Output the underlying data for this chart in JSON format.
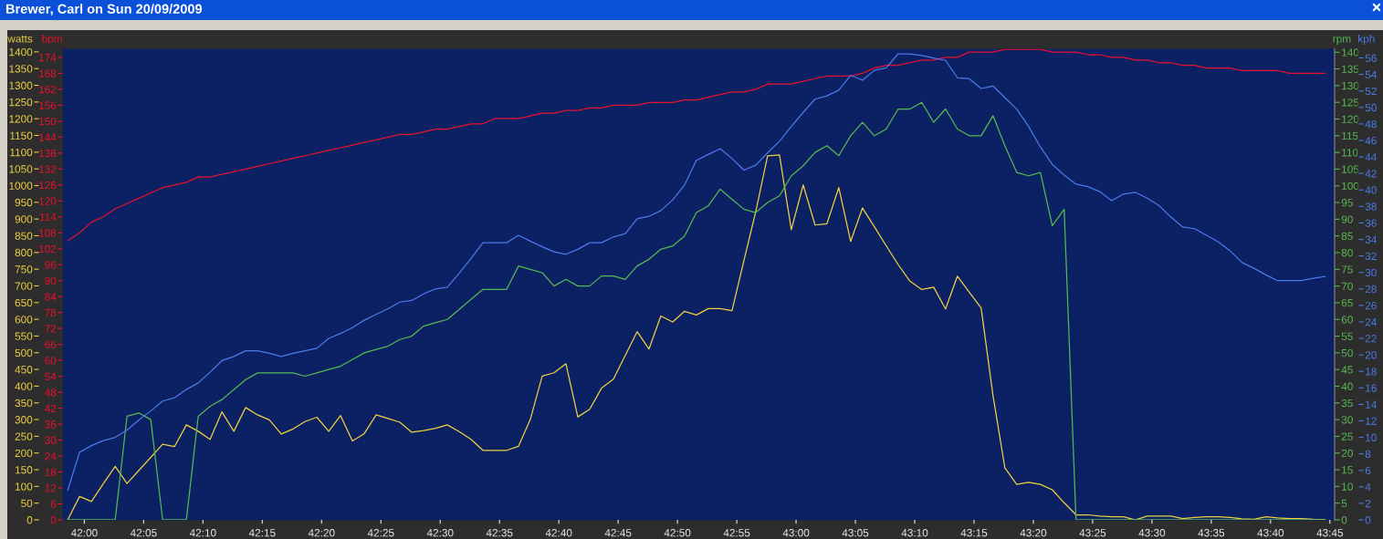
{
  "chart_data": [
    {
      "type": "line",
      "title": "Brewer, Carl on Sun 20/09/2009",
      "ylabel": "watts",
      "y2label": "bpm",
      "xlim": [
        2518.2,
        2625.4
      ],
      "xticks": [
        {
          "value": 2520,
          "label": "42:00"
        },
        {
          "value": 2525,
          "label": "42:05"
        },
        {
          "value": 2530,
          "label": "42:10"
        },
        {
          "value": 2535,
          "label": "42:15"
        },
        {
          "value": 2540,
          "label": "42:20"
        },
        {
          "value": 2545,
          "label": "42:25"
        },
        {
          "value": 2550,
          "label": "42:30"
        },
        {
          "value": 2555,
          "label": "42:35"
        },
        {
          "value": 2560,
          "label": "42:40"
        },
        {
          "value": 2565,
          "label": "42:45"
        },
        {
          "value": 2570,
          "label": "42:50"
        },
        {
          "value": 2575,
          "label": "42:55"
        },
        {
          "value": 2580,
          "label": "43:00"
        },
        {
          "value": 2585,
          "label": "43:05"
        },
        {
          "value": 2590,
          "label": "43:10"
        },
        {
          "value": 2595,
          "label": "43:15"
        },
        {
          "value": 2600,
          "label": "43:20"
        },
        {
          "value": 2605,
          "label": "43:25"
        },
        {
          "value": 2610,
          "label": "43:30"
        },
        {
          "value": 2615,
          "label": "43:35"
        },
        {
          "value": 2620,
          "label": "43:40"
        },
        {
          "value": 2625,
          "label": "43:45"
        }
      ],
      "ylim": [
        0,
        1409
      ],
      "yticks": [
        0,
        50,
        100,
        150,
        200,
        250,
        300,
        350,
        400,
        450,
        500,
        550,
        600,
        650,
        700,
        750,
        800,
        850,
        900,
        950,
        1000,
        1050,
        1100,
        1150,
        1200,
        1250,
        1300,
        1350,
        1400
      ],
      "y2lim": [
        0,
        177.2
      ],
      "y2ticks": [
        0,
        6,
        12,
        18,
        24,
        30,
        36,
        42,
        48,
        54,
        60,
        66,
        72,
        78,
        84,
        90,
        96,
        102,
        108,
        114,
        120,
        126,
        132,
        138,
        144,
        150,
        156,
        162,
        168,
        174
      ],
      "x": [
        2518.6,
        2519.6,
        2520.6,
        2521.6,
        2522.6,
        2523.6,
        2524.6,
        2525.6,
        2526.6,
        2527.6,
        2528.6,
        2529.6,
        2530.6,
        2531.6,
        2532.6,
        2533.6,
        2534.6,
        2535.6,
        2536.6,
        2537.6,
        2538.6,
        2539.6,
        2540.6,
        2541.6,
        2542.6,
        2543.6,
        2544.6,
        2545.6,
        2546.6,
        2547.6,
        2548.6,
        2549.6,
        2550.6,
        2551.6,
        2552.6,
        2553.6,
        2554.6,
        2555.6,
        2556.6,
        2557.6,
        2558.6,
        2559.6,
        2560.6,
        2561.6,
        2562.6,
        2563.6,
        2564.6,
        2565.6,
        2566.6,
        2567.6,
        2568.6,
        2569.6,
        2570.6,
        2571.6,
        2572.6,
        2573.6,
        2574.6,
        2575.6,
        2576.6,
        2577.6,
        2578.6,
        2579.6,
        2580.6,
        2581.6,
        2582.6,
        2583.6,
        2584.6,
        2585.6,
        2586.6,
        2587.6,
        2588.6,
        2589.6,
        2590.6,
        2591.6,
        2592.6,
        2593.6,
        2594.6,
        2595.6,
        2596.6,
        2597.6,
        2598.6,
        2599.6,
        2600.6,
        2601.6,
        2602.6,
        2603.6,
        2604.6,
        2605.6,
        2606.6,
        2607.6,
        2608.6,
        2609.6,
        2610.6,
        2611.6,
        2612.6,
        2613.6,
        2614.6,
        2615.6,
        2616.6,
        2617.6,
        2618.6,
        2619.6,
        2620.6,
        2621.6,
        2622.6,
        2623.6,
        2624.6
      ],
      "series": [
        {
          "color": "#f0d040",
          "values": [
            0,
            70,
            55,
            108,
            160,
            109,
            148,
            187,
            226,
            219,
            284,
            265,
            241,
            323,
            265,
            336,
            314,
            299,
            257,
            272,
            294,
            307,
            265,
            312,
            236,
            258,
            314,
            303,
            292,
            262,
            267,
            274,
            284,
            264,
            241,
            208,
            208,
            208,
            220,
            301,
            430,
            440,
            467,
            308,
            331,
            394,
            421,
            492,
            563,
            511,
            610,
            592,
            624,
            613,
            632,
            632,
            626,
            775,
            922,
            1089,
            1092,
            868,
            1002,
            882,
            886,
            994,
            833,
            933,
            877,
            820,
            764,
            714,
            689,
            696,
            631,
            729,
            681,
            634,
            372,
            156,
            106,
            112,
            106,
            90,
            51,
            15,
            15,
            11,
            9,
            9,
            0,
            11,
            11,
            11,
            4,
            7,
            9,
            9,
            7,
            3,
            2,
            9,
            6,
            4,
            4,
            2,
            1
          ]
        },
        {
          "color": "#e8102a",
          "axis": "y2",
          "values": [
            105,
            108,
            112,
            114,
            117,
            119,
            121,
            123,
            125,
            126,
            127,
            129,
            129,
            130,
            131,
            132,
            133,
            134,
            135,
            136,
            137,
            138,
            139,
            140,
            141,
            142,
            143,
            144,
            145,
            145,
            146,
            147,
            147,
            148,
            149,
            149,
            151,
            151,
            151,
            152,
            153,
            153,
            154,
            154,
            155,
            155,
            156,
            156,
            156,
            157,
            157,
            157,
            158,
            158,
            159,
            160,
            161,
            161,
            162,
            164,
            164,
            164,
            165,
            166,
            167,
            167,
            167,
            168,
            170,
            171,
            171,
            172,
            173,
            173,
            174,
            174,
            176,
            176,
            176,
            177,
            177,
            177,
            177,
            176,
            176,
            176,
            175,
            175,
            174,
            174,
            173,
            173,
            172,
            172,
            171,
            171,
            170,
            170,
            170,
            169,
            169,
            169,
            169,
            168,
            168,
            168,
            168
          ]
        }
      ]
    },
    {
      "type": "line",
      "ylabel": "rpm",
      "y2label": "kph",
      "tick_labels": "y",
      "xlim": [
        2518.2,
        2625.4
      ],
      "ylim": [
        0,
        141
      ],
      "yticks": [
        0,
        5,
        10,
        15,
        20,
        25,
        30,
        35,
        40,
        45,
        50,
        55,
        60,
        65,
        70,
        75,
        80,
        85,
        90,
        95,
        100,
        105,
        110,
        115,
        120,
        125,
        130,
        135,
        140
      ],
      "y2lim": [
        0,
        57.1
      ],
      "y2ticks": [
        0,
        2,
        4,
        6,
        8,
        10,
        12,
        14,
        16,
        18,
        20,
        22,
        24,
        26,
        28,
        30,
        32,
        34,
        36,
        38,
        40,
        42,
        44,
        46,
        48,
        50,
        52,
        54,
        56
      ],
      "x": [
        2518.6,
        2519.6,
        2520.6,
        2521.6,
        2522.6,
        2523.6,
        2524.6,
        2525.6,
        2526.6,
        2527.6,
        2528.6,
        2529.6,
        2530.6,
        2531.6,
        2532.6,
        2533.6,
        2534.6,
        2535.6,
        2536.6,
        2537.6,
        2538.6,
        2539.6,
        2540.6,
        2541.6,
        2542.6,
        2543.6,
        2544.6,
        2545.6,
        2546.6,
        2547.6,
        2548.6,
        2549.6,
        2550.6,
        2551.6,
        2552.6,
        2553.6,
        2554.6,
        2555.6,
        2556.6,
        2557.6,
        2558.6,
        2559.6,
        2560.6,
        2561.6,
        2562.6,
        2563.6,
        2564.6,
        2565.6,
        2566.6,
        2567.6,
        2568.6,
        2569.6,
        2570.6,
        2571.6,
        2572.6,
        2573.6,
        2574.6,
        2575.6,
        2576.6,
        2577.6,
        2578.6,
        2579.6,
        2580.6,
        2581.6,
        2582.6,
        2583.6,
        2584.6,
        2585.6,
        2586.6,
        2587.6,
        2588.6,
        2589.6,
        2590.6,
        2591.6,
        2592.6,
        2593.6,
        2594.6,
        2595.6,
        2596.6,
        2597.6,
        2598.6,
        2599.6,
        2600.6,
        2601.6,
        2602.6,
        2603.6,
        2604.6,
        2605.6,
        2606.6,
        2607.6,
        2608.6,
        2609.6,
        2610.6,
        2611.6,
        2612.6,
        2613.6,
        2614.6,
        2615.6,
        2616.6,
        2617.6,
        2618.6,
        2619.6,
        2620.6,
        2621.6,
        2622.6,
        2623.6,
        2624.6
      ],
      "series": [
        {
          "color": "#58b850",
          "values": [
            0,
            0,
            0,
            0,
            0,
            31,
            32,
            30,
            0,
            0,
            0,
            31,
            34,
            36,
            39,
            42,
            44,
            44,
            44,
            44,
            43,
            44,
            45,
            46,
            48,
            50,
            51,
            52,
            54,
            55,
            58,
            59,
            60,
            63,
            66,
            69,
            69,
            69,
            76,
            75,
            74,
            70,
            72,
            70,
            70,
            73,
            73,
            72,
            76,
            78,
            81,
            82,
            85,
            92,
            94,
            99,
            96,
            93,
            92,
            95,
            97,
            103,
            106,
            110,
            112,
            109,
            115,
            119,
            115,
            117,
            123,
            123,
            125,
            119,
            123,
            117,
            115,
            115,
            121,
            112,
            104,
            103,
            104,
            88,
            93,
            0,
            0,
            0,
            0,
            0,
            0,
            0,
            0,
            0,
            0,
            0,
            0,
            0,
            0,
            0,
            0,
            0,
            0,
            0,
            0,
            0,
            0
          ]
        },
        {
          "color": "#4a7be6",
          "axis": "y2",
          "values": [
            3.6,
            8.2,
            9.0,
            9.6,
            10.0,
            10.9,
            12.1,
            13.2,
            14.4,
            14.8,
            15.8,
            16.6,
            17.9,
            19.3,
            19.8,
            20.5,
            20.5,
            20.2,
            19.8,
            20.2,
            20.5,
            20.8,
            22.0,
            22.6,
            23.3,
            24.2,
            24.9,
            25.6,
            26.4,
            26.6,
            27.4,
            28.0,
            28.2,
            29.9,
            31.7,
            33.6,
            33.6,
            33.6,
            34.5,
            33.8,
            33.1,
            32.5,
            32.2,
            32.8,
            33.6,
            33.6,
            34.3,
            34.7,
            36.5,
            36.8,
            37.5,
            38.8,
            40.6,
            43.6,
            44.3,
            45.0,
            43.8,
            42.4,
            43.0,
            44.5,
            45.9,
            47.7,
            49.4,
            51.0,
            51.4,
            52.1,
            53.9,
            53.3,
            54.5,
            54.8,
            56.5,
            56.5,
            56.3,
            56.0,
            55.7,
            53.6,
            53.5,
            52.3,
            52.6,
            51.2,
            49.8,
            47.7,
            45.2,
            43.1,
            41.8,
            40.7,
            40.4,
            39.8,
            38.7,
            39.5,
            39.7,
            39.0,
            38.1,
            36.7,
            35.5,
            35.3,
            34.5,
            33.7,
            32.6,
            31.2,
            30.5,
            29.7,
            29.0,
            29.0,
            29.0,
            29.3,
            29.5
          ]
        }
      ]
    }
  ]
}
